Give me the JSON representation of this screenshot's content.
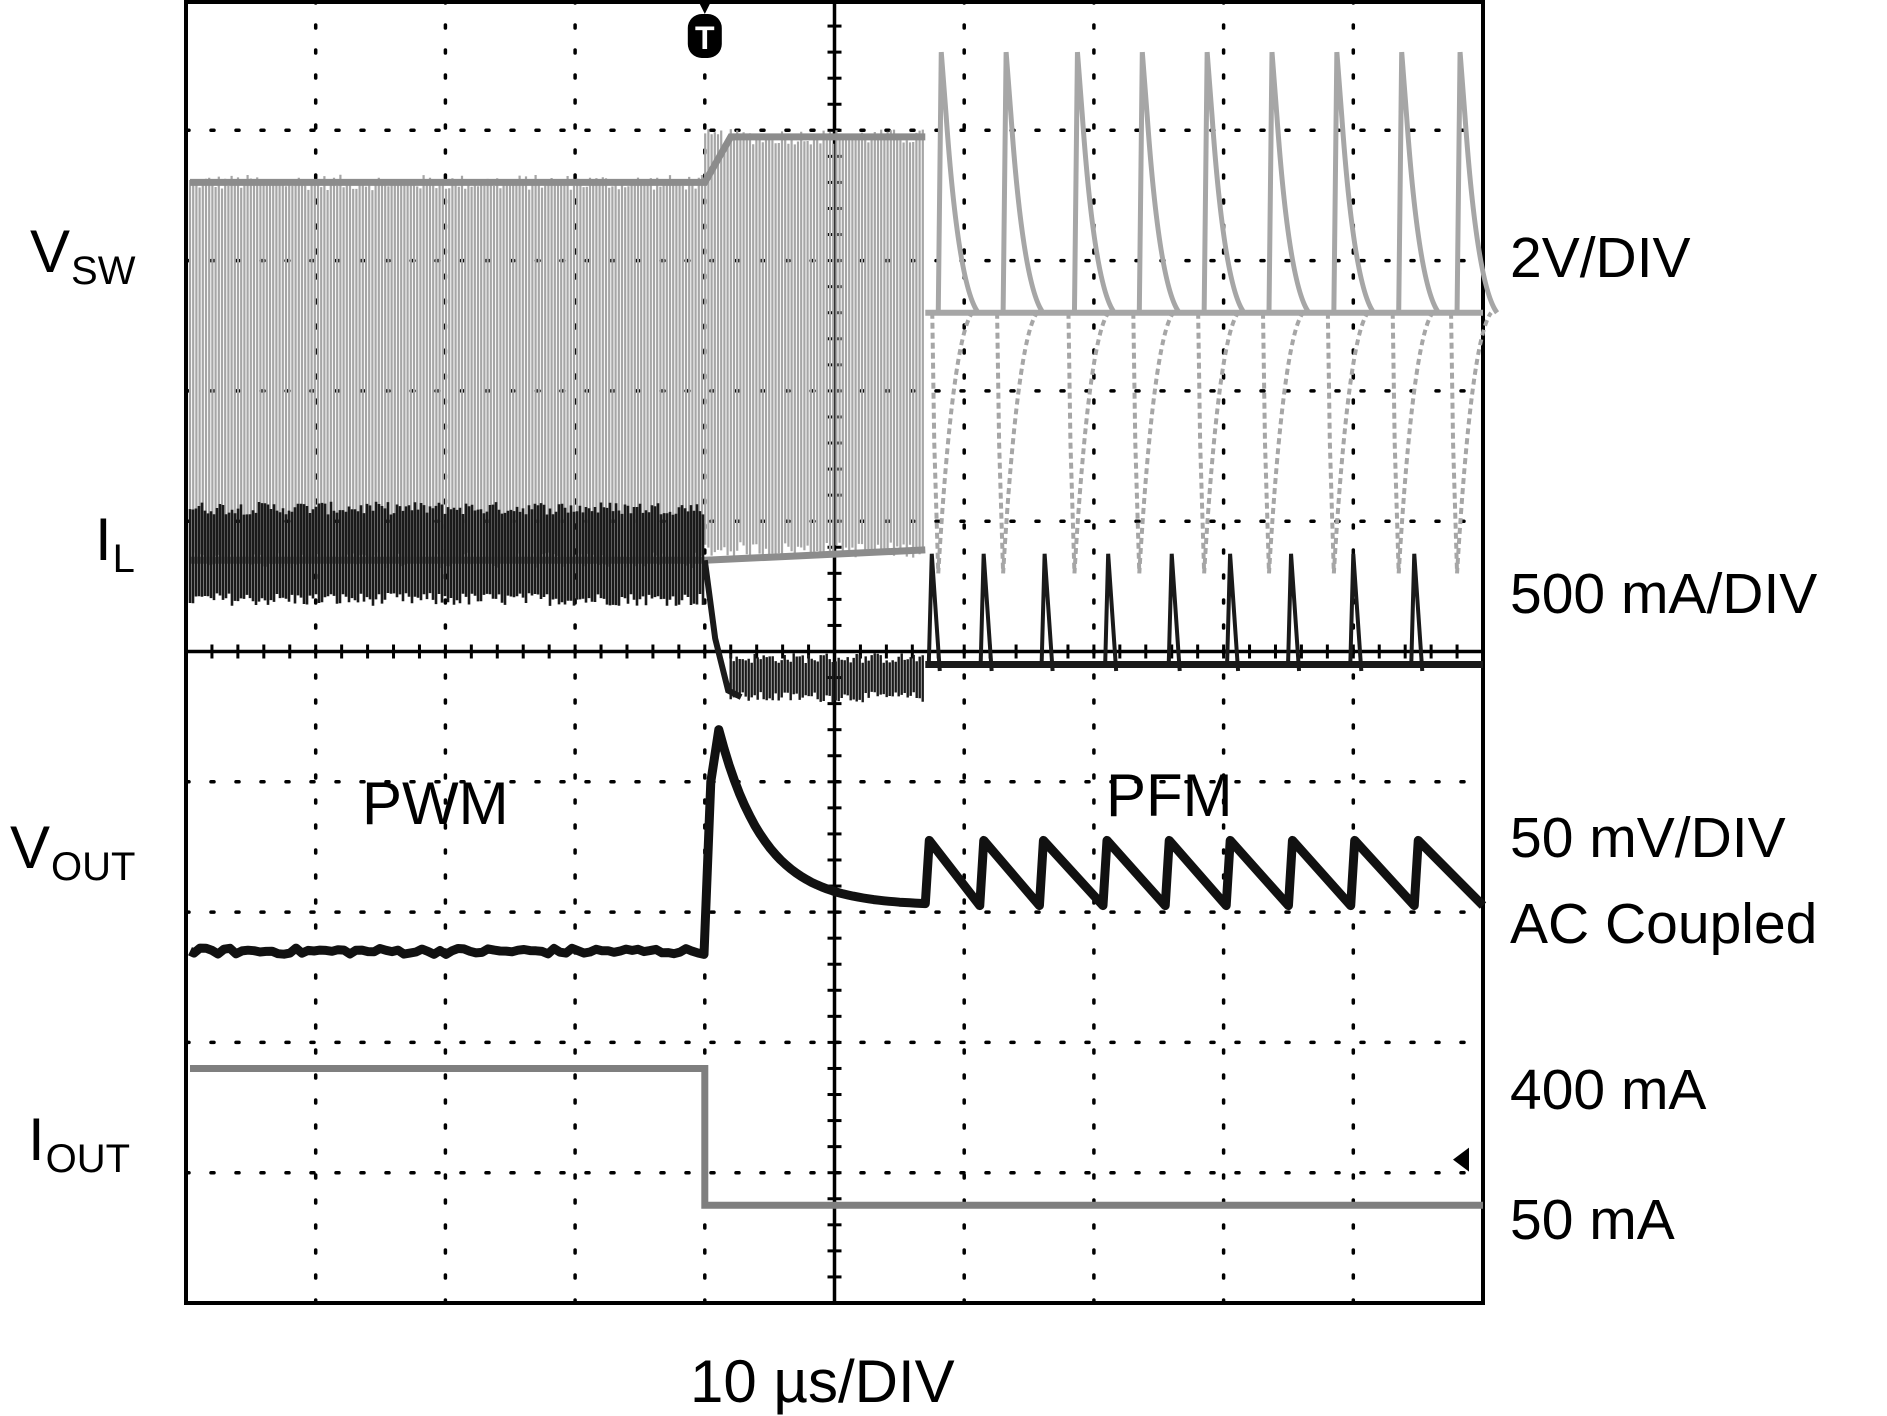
{
  "chart_data": {
    "type": "line",
    "title": "",
    "time_base": "10 µs/DIV",
    "trigger_marker": "T",
    "x_divisions": 10,
    "y_divisions": 10,
    "grid": true,
    "x": {
      "unit": "div",
      "range": [
        0,
        10
      ],
      "trigger_at": 4,
      "load_step_at": 4.0
    },
    "channels": [
      {
        "key": "vsw",
        "name_main": "V",
        "name_sub": "SW",
        "scale_label": "2V/DIV",
        "color": "#a6a6a6",
        "mode_label_pwm": "PWM",
        "pwm_phase": {
          "x": [
            0,
            5.7
          ],
          "low_div": 5.7,
          "high_div": 8.6,
          "high_after_step_div": 8.95
        },
        "pfm_phase": {
          "x": [
            5.7,
            10
          ],
          "idle_div": 7.6,
          "pulse_times_div": [
            5.8,
            6.3,
            6.85,
            7.35,
            7.85,
            8.35,
            8.85,
            9.35,
            9.8
          ]
        }
      },
      {
        "key": "il",
        "name_main": "I",
        "name_sub": "L",
        "scale_label": "500 mA/DIV",
        "color": "#1a1a1a",
        "pwm_level_div": [
          5.4,
          6.1
        ],
        "after_step_div": [
          4.65,
          4.95
        ],
        "pfm_base_div": 4.9,
        "pfm_peak_div": 5.75,
        "pfm_pulse_times_div": [
          5.75,
          6.15,
          6.62,
          7.11,
          7.6,
          8.05,
          8.52,
          9.0,
          9.47
        ]
      },
      {
        "key": "vout",
        "name_main": "V",
        "name_sub": "OUT",
        "scale_label": "50 mV/DIV",
        "scale_note": "AC Coupled",
        "color": "#111111",
        "mode_label_pfm": "PFM",
        "pwm_level_div": 2.7,
        "overshoot_peak_div": 4.4,
        "pfm_ripple_div": [
          3.05,
          3.55
        ],
        "pfm_ramp_times_div": [
          5.7,
          6.12,
          6.58,
          7.07,
          7.55,
          8.02,
          8.5,
          8.98,
          9.47
        ]
      },
      {
        "key": "iout",
        "name_main": "I",
        "name_sub": "OUT",
        "scale_label_high": "400 mA",
        "scale_label_low": "50 mA",
        "color": "#7f7f7f",
        "high_level_div": 1.8,
        "low_level_div": 0.75,
        "step_at_div": 4.0
      }
    ]
  }
}
